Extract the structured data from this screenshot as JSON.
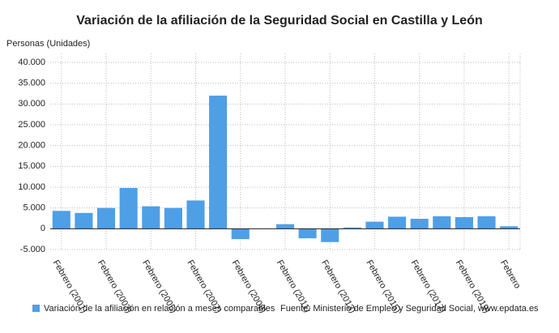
{
  "chart_data": {
    "type": "bar",
    "title": "Variación de la afiliación de la Seguridad Social en Castilla y León",
    "y_axis_label": "Personas (Unidades)",
    "categories": [
      "Febrero (2001)",
      null,
      "Febrero (2003)",
      null,
      "Febrero (2005)",
      null,
      "Febrero (2007)",
      null,
      "Febrero (2009)",
      null,
      "Febrero (2011)",
      null,
      "Febrero (2013)",
      null,
      "Febrero (2015)",
      null,
      "Febrero (2017)",
      null,
      "Febrero (2019)",
      null,
      "Febrero"
    ],
    "series": [
      {
        "name": "Variación de la afiliación en relación a meses comparables",
        "color": "#4f9fe6",
        "values": [
          4300,
          3800,
          5000,
          9800,
          5400,
          5000,
          6800,
          32000,
          -2500,
          0,
          1100,
          -2300,
          -3200,
          300,
          1700,
          2900,
          2400,
          3000,
          2800,
          3000,
          600
        ]
      }
    ],
    "source": "Fuente: Ministerio de Empleo y Seguridad Social, www.epdata.es",
    "ylim": [
      -5000,
      40000
    ],
    "yticks": [
      {
        "value": -5000,
        "label": "-5.000"
      },
      0,
      {
        "value": 5000,
        "label": "5.000"
      },
      {
        "value": 10000,
        "label": "10.000"
      },
      {
        "value": 15000,
        "label": "15.000"
      },
      {
        "value": 20000,
        "label": "20.000"
      },
      {
        "value": 25000,
        "label": "25.000"
      },
      {
        "value": 30000,
        "label": "30.000"
      },
      {
        "value": 35000,
        "label": "35.000"
      },
      {
        "value": 40000,
        "label": "40.000"
      }
    ],
    "grid": true
  }
}
